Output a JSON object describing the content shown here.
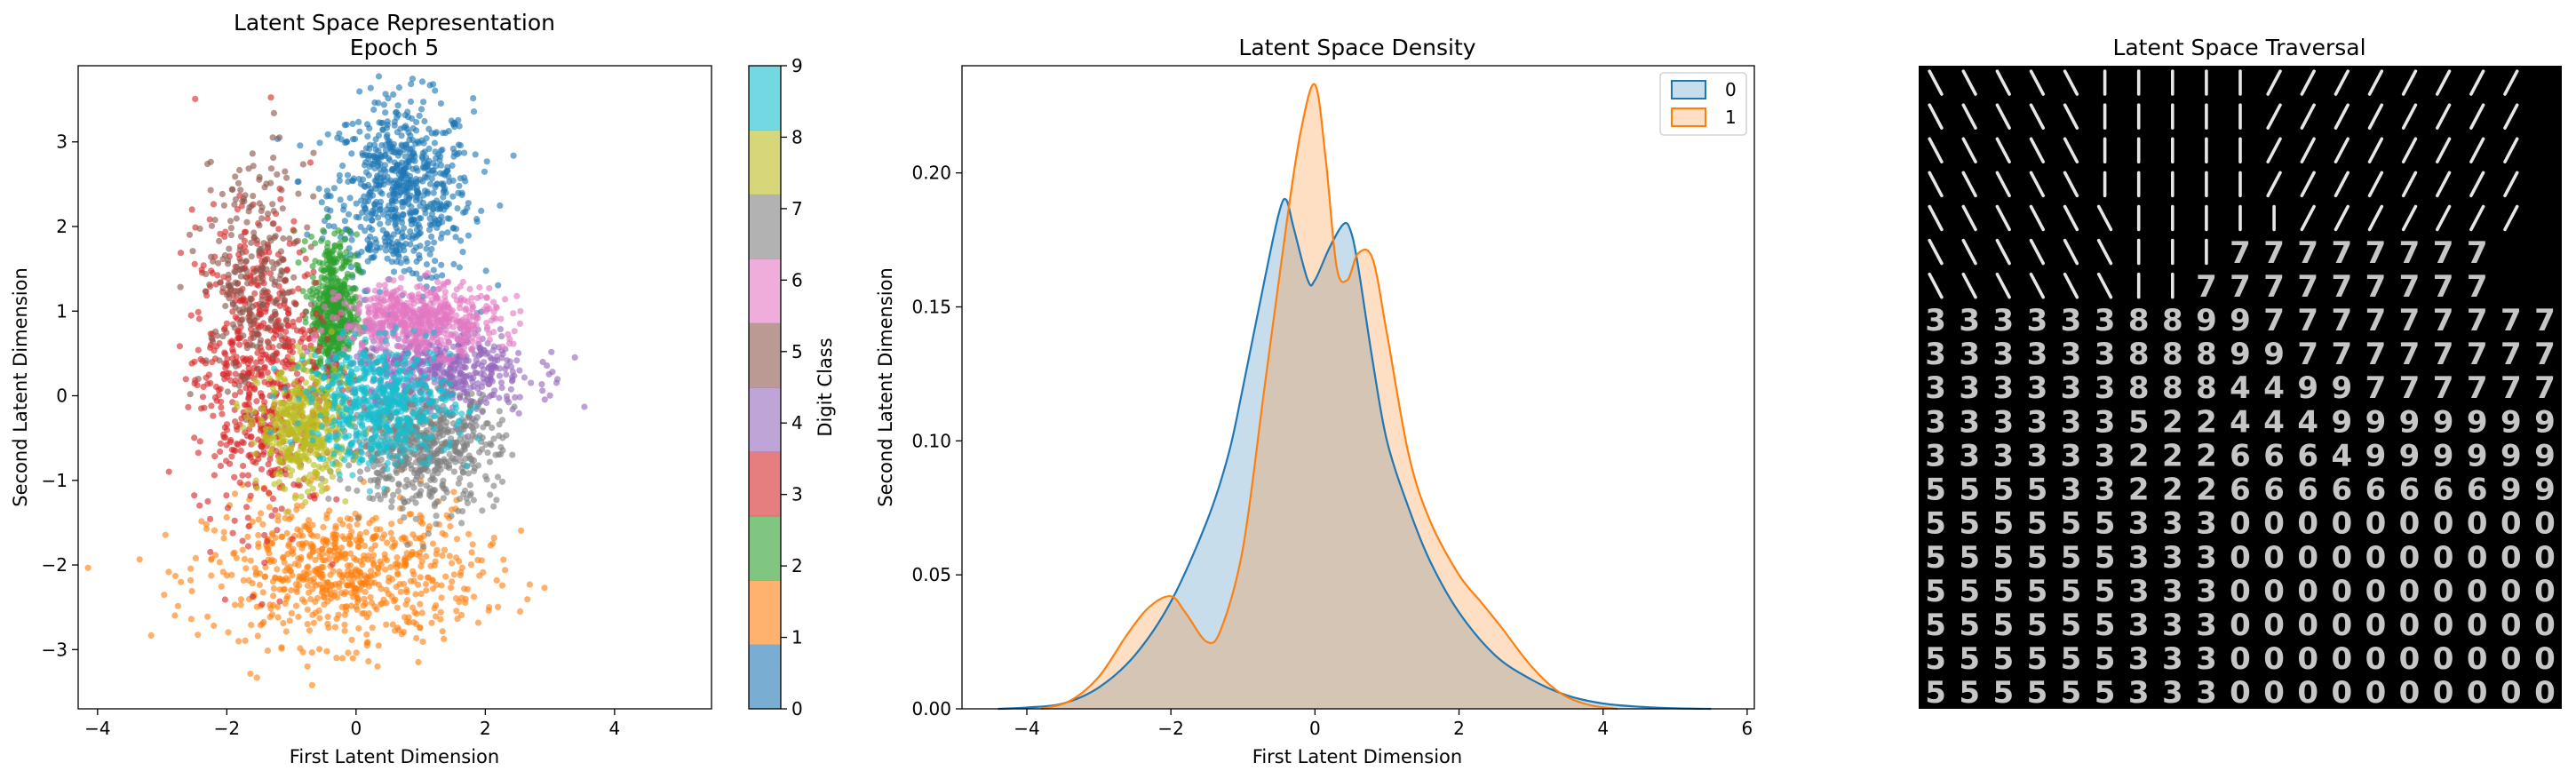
{
  "chart_data": [
    {
      "type": "scatter",
      "title": "Latent Space Representation",
      "subtitle": "Epoch 5",
      "xlabel": "First Latent Dimension",
      "ylabel": "Second Latent Dimension",
      "xlim": [
        -4.3,
        5.5
      ],
      "ylim": [
        -3.7,
        3.9
      ],
      "xticks": [
        -4,
        -2,
        0,
        2,
        4
      ],
      "yticks": [
        -3,
        -2,
        -1,
        0,
        1,
        2,
        3
      ],
      "colorbar": {
        "label": "Digit Class",
        "ticks": [
          "0",
          "1",
          "2",
          "3",
          "4",
          "5",
          "6",
          "7",
          "8",
          "9"
        ],
        "colors": [
          "#1f77b4",
          "#ff7f0e",
          "#2ca02c",
          "#d62728",
          "#9467bd",
          "#8c564b",
          "#e377c2",
          "#7f7f7f",
          "#bcbd22",
          "#17becf"
        ]
      },
      "clusters": [
        {
          "class": 0,
          "center": [
            0.7,
            2.4
          ],
          "spread": [
            0.55,
            0.55
          ],
          "count": 700
        },
        {
          "class": 1,
          "center": [
            -0.2,
            -2.1
          ],
          "spread": [
            1.05,
            0.42
          ],
          "count": 700
        },
        {
          "class": 2,
          "center": [
            -0.35,
            1.0
          ],
          "spread": [
            0.18,
            0.45
          ],
          "count": 500
        },
        {
          "class": 3,
          "center": [
            -1.5,
            0.3
          ],
          "spread": [
            0.5,
            0.9
          ],
          "count": 650
        },
        {
          "class": 4,
          "center": [
            1.3,
            0.3
          ],
          "spread": [
            0.7,
            0.25
          ],
          "count": 500
        },
        {
          "class": 5,
          "center": [
            -1.6,
            1.4
          ],
          "spread": [
            0.4,
            0.7
          ],
          "count": 250
        },
        {
          "class": 6,
          "center": [
            1.0,
            0.9
          ],
          "spread": [
            0.6,
            0.2
          ],
          "count": 550
        },
        {
          "class": 7,
          "center": [
            1.0,
            -0.6
          ],
          "spread": [
            0.6,
            0.35
          ],
          "count": 600
        },
        {
          "class": 8,
          "center": [
            -0.8,
            -0.4
          ],
          "spread": [
            0.35,
            0.35
          ],
          "count": 450
        },
        {
          "class": 9,
          "center": [
            0.4,
            -0.1
          ],
          "spread": [
            0.55,
            0.35
          ],
          "count": 550
        }
      ]
    },
    {
      "type": "area",
      "title": "Latent Space Density",
      "xlabel": "First Latent Dimension",
      "ylabel": "Second Latent Dimension",
      "xlim": [
        -4.9,
        6.1
      ],
      "ylim": [
        0,
        0.24
      ],
      "xticks": [
        -4,
        -2,
        0,
        2,
        4,
        6
      ],
      "yticks": [
        "0.00",
        "0.05",
        "0.10",
        "0.15",
        "0.20"
      ],
      "legend_position": "top-right",
      "series": [
        {
          "name": "0",
          "color": "#1f77b4",
          "x": [
            -4.4,
            -4.0,
            -3.5,
            -3.0,
            -2.5,
            -2.0,
            -1.5,
            -1.2,
            -1.0,
            -0.7,
            -0.5,
            -0.4,
            -0.3,
            -0.1,
            0.0,
            0.2,
            0.4,
            0.5,
            0.6,
            0.8,
            1.0,
            1.3,
            1.6,
            2.0,
            2.5,
            3.0,
            3.5,
            4.0,
            4.5,
            5.0,
            5.5
          ],
          "y": [
            0.0,
            0.0005,
            0.002,
            0.008,
            0.02,
            0.04,
            0.07,
            0.095,
            0.12,
            0.16,
            0.185,
            0.19,
            0.18,
            0.16,
            0.16,
            0.172,
            0.181,
            0.178,
            0.165,
            0.13,
            0.1,
            0.075,
            0.055,
            0.036,
            0.02,
            0.011,
            0.005,
            0.002,
            0.0008,
            0.0002,
            0.0
          ]
        },
        {
          "name": "1",
          "color": "#ff7f0e",
          "x": [
            -3.8,
            -3.4,
            -3.0,
            -2.6,
            -2.3,
            -2.0,
            -1.8,
            -1.5,
            -1.3,
            -1.0,
            -0.7,
            -0.4,
            -0.2,
            0.0,
            0.15,
            0.3,
            0.45,
            0.6,
            0.8,
            1.0,
            1.3,
            1.6,
            2.0,
            2.3,
            2.6,
            3.0,
            3.4,
            3.8,
            4.2
          ],
          "y": [
            0.0,
            0.003,
            0.012,
            0.028,
            0.038,
            0.042,
            0.036,
            0.025,
            0.03,
            0.06,
            0.12,
            0.18,
            0.215,
            0.233,
            0.205,
            0.165,
            0.16,
            0.17,
            0.168,
            0.14,
            0.095,
            0.07,
            0.05,
            0.04,
            0.03,
            0.016,
            0.006,
            0.0015,
            0.0
          ]
        }
      ]
    },
    {
      "type": "image-grid",
      "title": "Latent Space Traversal",
      "rows": [
        "\\\\\\\\\\|||||////////",
        "\\\\\\\\\\|||||////////",
        "\\\\\\\\\\|||||////////",
        "\\\\\\\\\\|||||////////",
        "\\\\\\\\\\\\|||||///////",
        "\\\\\\\\\\\\|||77777777",
        "\\\\\\\\\\\\||777777777",
        "3333338899777777777",
        "3333338889977777777",
        "3333338884499777777",
        "3333335224449999999",
        "3333332226664999999",
        "5555332226666666699",
        "5555553330000000000",
        "5555553330000000000",
        "5555553330000000000",
        "5555553330000000000",
        "5555553330000000000",
        "5555553330000000000"
      ]
    }
  ]
}
